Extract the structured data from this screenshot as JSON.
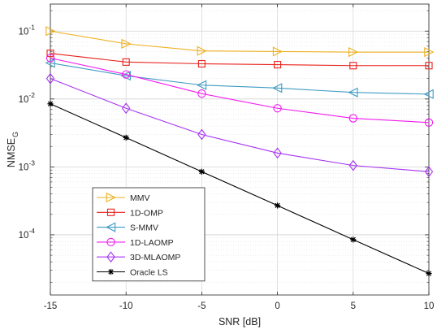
{
  "chart_data": {
    "type": "line",
    "title": "",
    "xlabel": "SNR [dB]",
    "ylabel": "NMSE",
    "ylabel_sub": "G",
    "y_scale": "log",
    "x": [
      -15,
      -10,
      -5,
      0,
      5,
      10
    ],
    "xlim": [
      -15,
      10
    ],
    "ylim": [
      1.3e-05,
      0.25
    ],
    "x_ticks": [
      "-15",
      "-10",
      "-5",
      "0",
      "5",
      "10"
    ],
    "y_ticks": [
      {
        "value": 0.1,
        "base": "10",
        "exp": "-1"
      },
      {
        "value": 0.01,
        "base": "10",
        "exp": "-2"
      },
      {
        "value": 0.001,
        "base": "10",
        "exp": "-3"
      },
      {
        "value": 0.0001,
        "base": "10",
        "exp": "-4"
      }
    ],
    "grid": true,
    "legend_position": "bottom-left",
    "series": [
      {
        "name": "MMV",
        "color": "#EDB120",
        "marker": "triangle-right",
        "values": [
          0.1,
          0.065,
          0.051,
          0.05,
          0.049,
          0.049
        ]
      },
      {
        "name": "1D-OMP",
        "color": "#E8211B",
        "marker": "square",
        "values": [
          0.047,
          0.035,
          0.033,
          0.032,
          0.031,
          0.031
        ]
      },
      {
        "name": "S-MMV",
        "color": "#3F9BC3",
        "marker": "triangle-left",
        "values": [
          0.034,
          0.022,
          0.016,
          0.0145,
          0.0125,
          0.0118
        ]
      },
      {
        "name": "1D-LAOMP",
        "color": "#F21BEF",
        "marker": "circle",
        "values": [
          0.04,
          0.023,
          0.012,
          0.0073,
          0.0052,
          0.0045
        ]
      },
      {
        "name": "3D-MLAOMP",
        "color": "#A633F2",
        "marker": "diamond",
        "values": [
          0.02,
          0.0073,
          0.003,
          0.0016,
          0.00105,
          0.00085
        ]
      },
      {
        "name": "Oracle LS",
        "color": "#000000",
        "marker": "asterisk",
        "values": [
          0.0085,
          0.0027,
          0.00085,
          0.00027,
          8.5e-05,
          2.7e-05
        ]
      }
    ]
  }
}
